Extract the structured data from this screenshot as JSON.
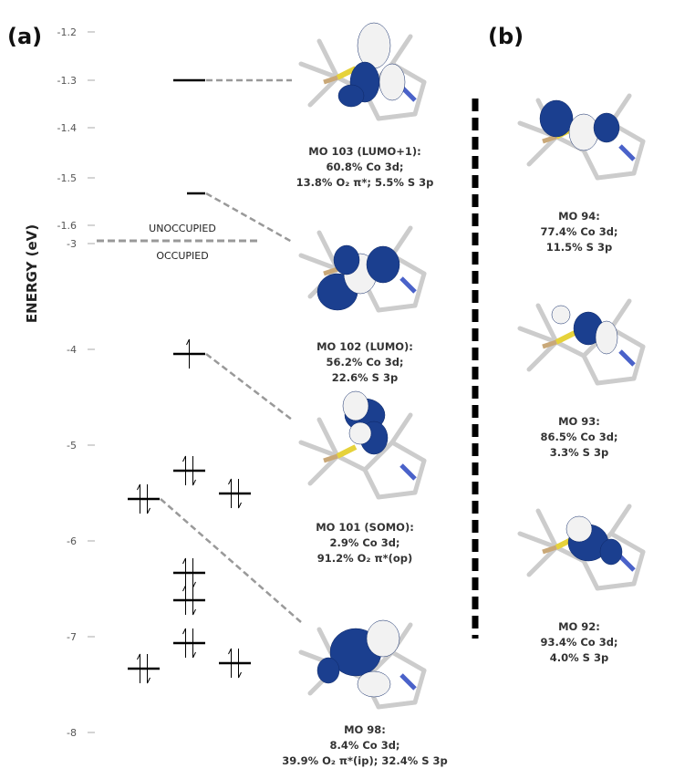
{
  "panel_a": {
    "label": "(a)",
    "axis_title": "ENERGY (eV)",
    "ticks": [
      "-1.2",
      "-1.3",
      "-1.4",
      "-1.5",
      "-1.6",
      "-3",
      "-4",
      "-5",
      "-6",
      "-7",
      "-8"
    ],
    "unoccupied": "UNOCCUPIED",
    "occupied": "OCCUPIED",
    "orbitals": [
      {
        "lines": [
          "MO 103 (LUMO+1):",
          "60.8% Co 3d;",
          "13.8% O₂ π*; 5.5% S 3p"
        ]
      },
      {
        "lines": [
          "MO 102 (LUMO):",
          "56.2% Co 3d;",
          "22.6% S 3p"
        ]
      },
      {
        "lines": [
          "MO 101 (SOMO):",
          "2.9% Co 3d;",
          "91.2% O₂ π*(op)"
        ]
      },
      {
        "lines": [
          "MO 98:",
          "8.4% Co 3d;",
          "39.9% O₂ π*(ip); 32.4% S 3p"
        ]
      }
    ]
  },
  "panel_b": {
    "label": "(b)",
    "orbitals": [
      {
        "lines": [
          "MO 94:",
          "77.4% Co 3d;",
          "11.5% S 3p"
        ]
      },
      {
        "lines": [
          "MO 93:",
          "86.5% Co 3d;",
          "3.3% S 3p"
        ]
      },
      {
        "lines": [
          "MO 92:",
          "93.4% Co 3d;",
          "4.0% S 3p"
        ]
      }
    ]
  }
}
